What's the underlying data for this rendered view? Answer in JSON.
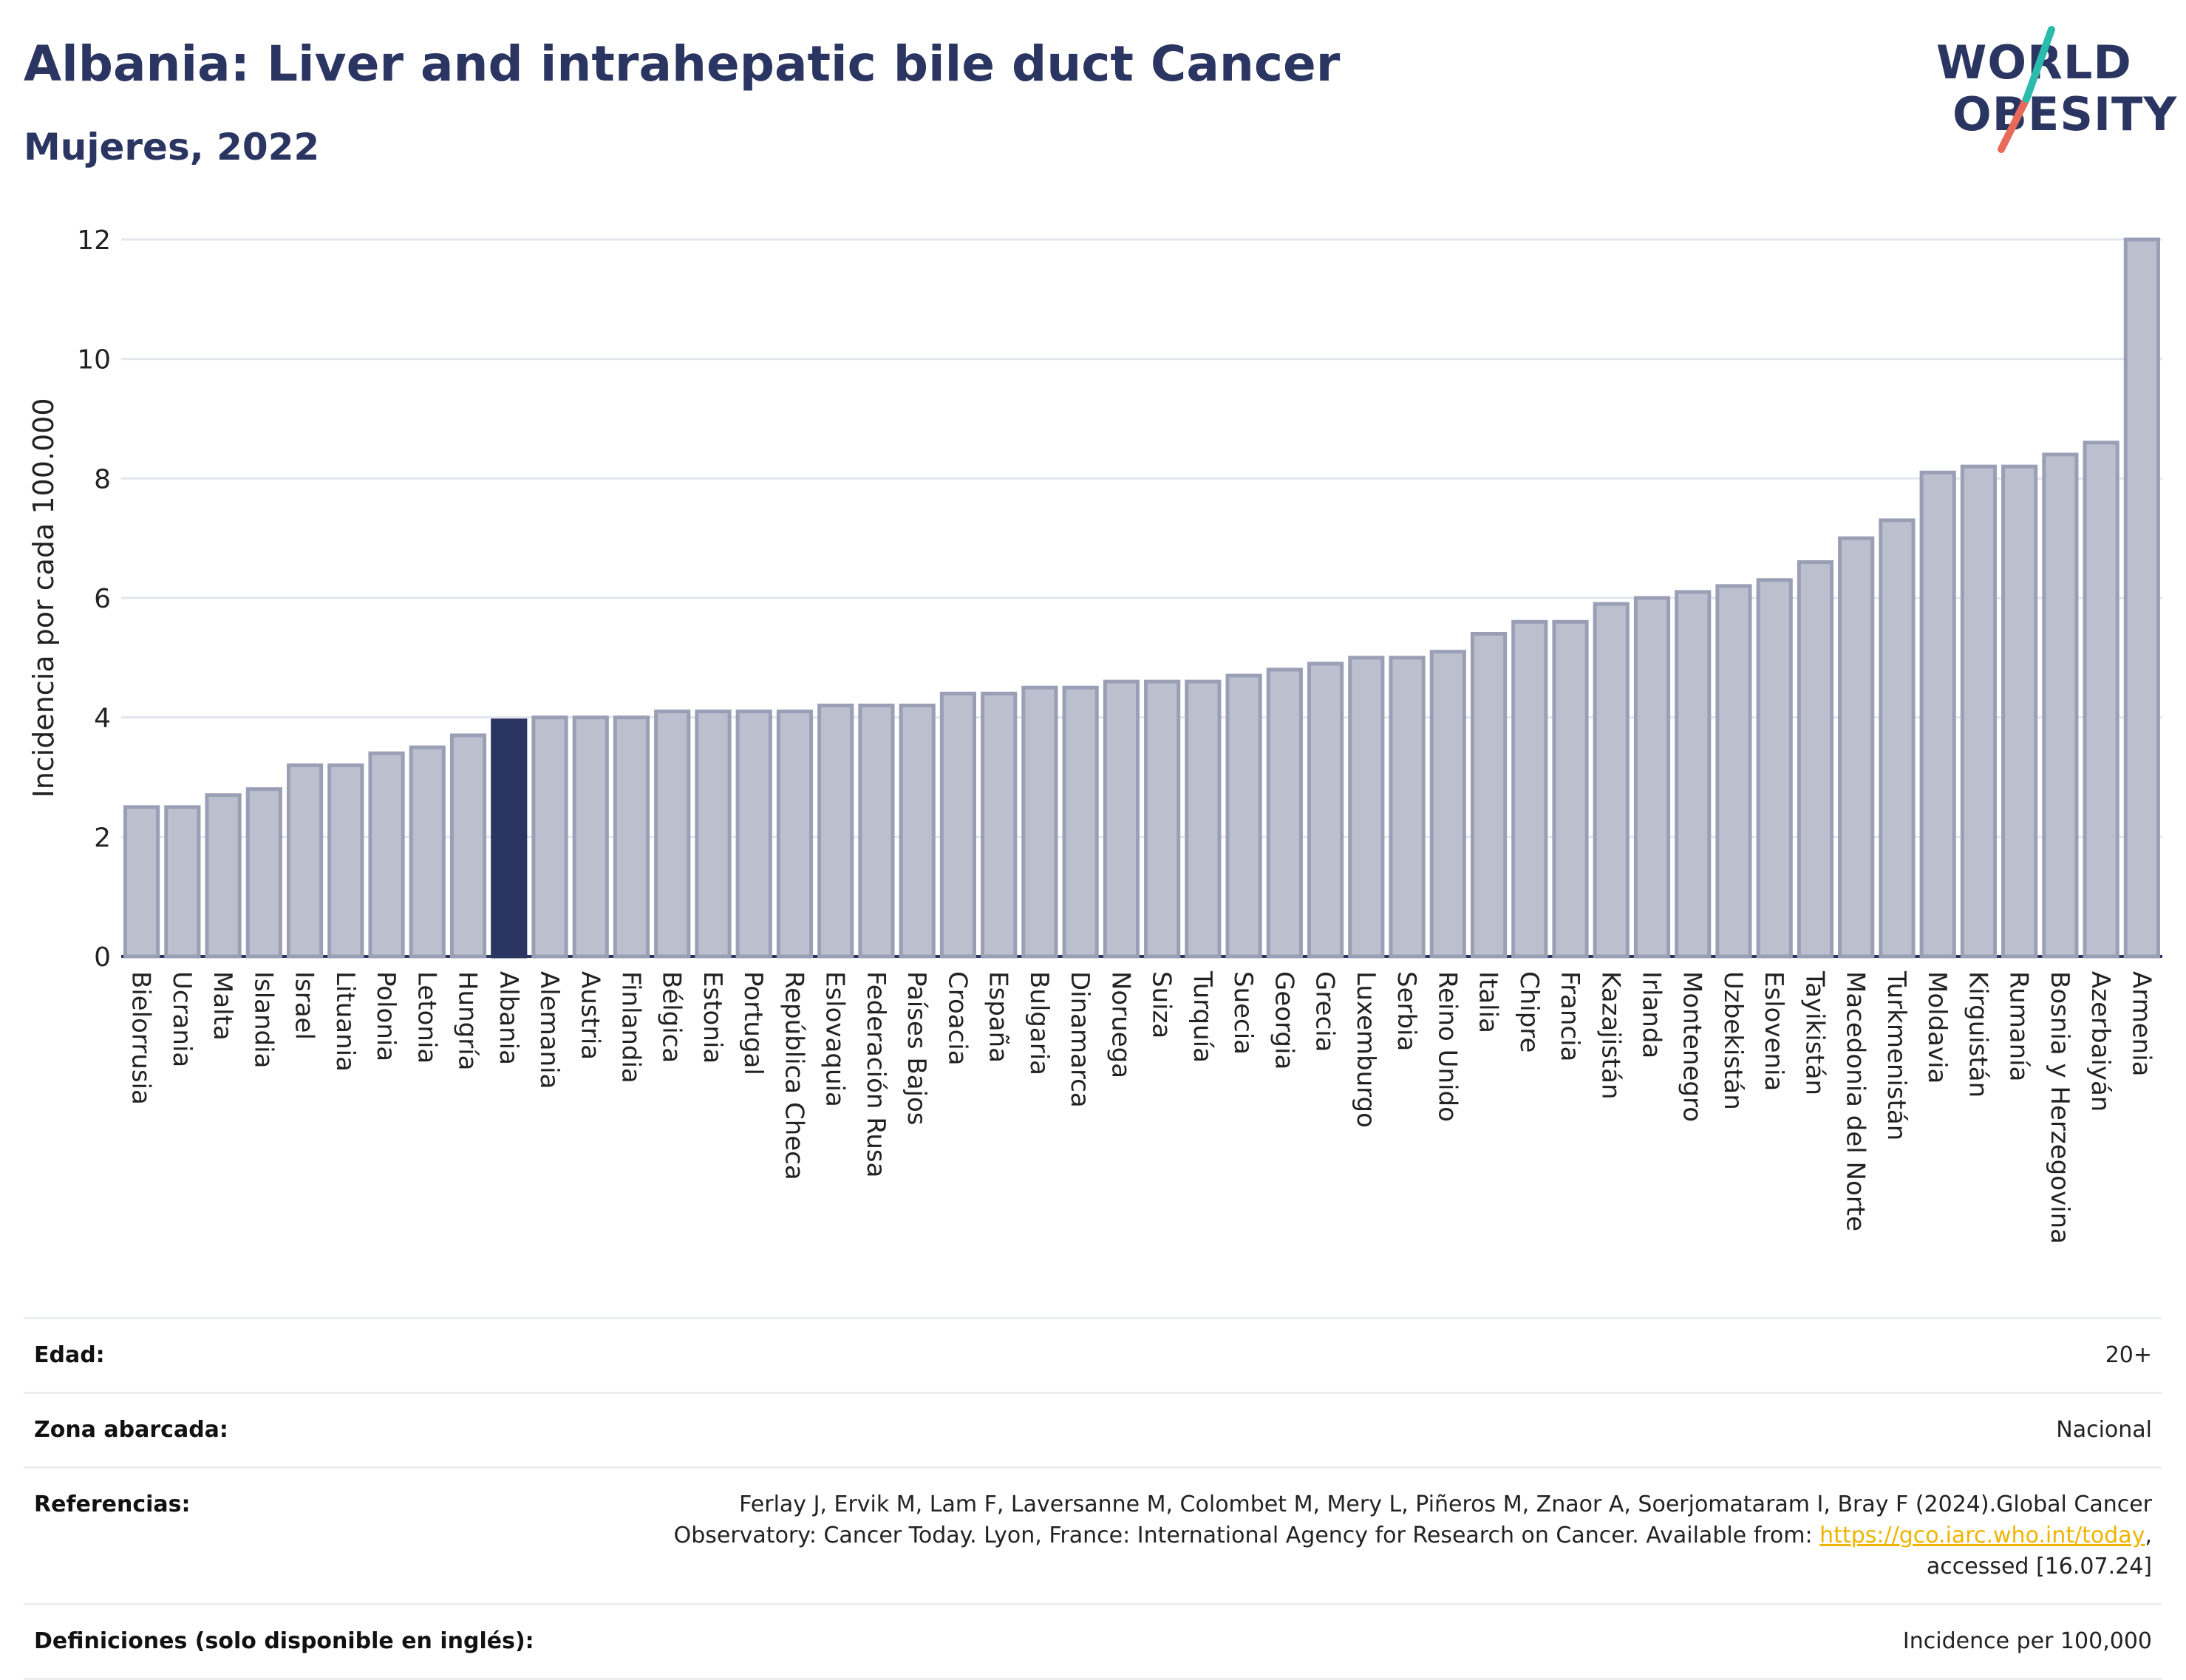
{
  "header": {
    "title": "Albania: Liver and intrahepatic bile duct Cancer",
    "subtitle": "Mujeres, 2022"
  },
  "logo": {
    "line1": "WORLD",
    "line2": "OBESITY"
  },
  "colors": {
    "bar_default": "#bcc0ce",
    "bar_default_stroke": "#9a9fb5",
    "bar_highlight": "#2b3561",
    "grid": "#e4e6ee",
    "title": "#2b3561",
    "logo_slash_teal": "#2bbbad",
    "logo_slash_red": "#e86a5a"
  },
  "chart_data": {
    "type": "bar",
    "title": "Albania: Liver and intrahepatic bile duct Cancer",
    "subtitle": "Mujeres, 2022",
    "xlabel": "",
    "ylabel": "Incidencia por cada 100.000",
    "ylim": [
      0,
      12
    ],
    "yticks": [
      0,
      2,
      4,
      6,
      8,
      10,
      12
    ],
    "grid": true,
    "highlight": "Albania",
    "categories": [
      "Bielorrusia",
      "Ucrania",
      "Malta",
      "Islandia",
      "Israel",
      "Lituania",
      "Polonia",
      "Letonia",
      "Hungría",
      "Albania",
      "Alemania",
      "Austria",
      "Finlandia",
      "Bélgica",
      "Estonia",
      "Portugal",
      "República Checa",
      "Eslovaquia",
      "Federación Rusa",
      "Países Bajos",
      "Croacia",
      "España",
      "Bulgaria",
      "Dinamarca",
      "Noruega",
      "Suiza",
      "Turquía",
      "Suecia",
      "Georgia",
      "Grecia",
      "Luxemburgo",
      "Serbia",
      "Reino Unido",
      "Italia",
      "Chipre",
      "Francia",
      "Kazajistán",
      "Irlanda",
      "Montenegro",
      "Uzbekistán",
      "Eslovenia",
      "Tayikistán",
      "Macedonia del Norte",
      "Turkmenistán",
      "Moldavia",
      "Kirguistán",
      "Rumanía",
      "Bosnia y Herzegovina",
      "Azerbaiyán",
      "Armenia"
    ],
    "values": [
      2.5,
      2.5,
      2.7,
      2.8,
      3.2,
      3.2,
      3.4,
      3.5,
      3.7,
      3.95,
      4.0,
      4.0,
      4.0,
      4.1,
      4.1,
      4.1,
      4.1,
      4.2,
      4.2,
      4.2,
      4.4,
      4.4,
      4.5,
      4.5,
      4.6,
      4.6,
      4.6,
      4.7,
      4.8,
      4.9,
      5.0,
      5.0,
      5.1,
      5.4,
      5.6,
      5.6,
      5.9,
      6.0,
      6.1,
      6.2,
      6.3,
      6.6,
      7.0,
      7.3,
      8.1,
      8.2,
      8.2,
      8.4,
      8.6,
      12.0
    ]
  },
  "info": {
    "rows": [
      {
        "label": "Edad:",
        "value": "20+"
      },
      {
        "label": "Zona abarcada:",
        "value": "Nacional"
      },
      {
        "label": "Referencias:",
        "value_line1": "Ferlay J, Ervik M, Lam F, Laversanne M, Colombet M, Mery L, Piñeros M, Znaor A, Soerjomataram I, Bray F (2024).Global Cancer",
        "value_line2_pre": "Observatory: Cancer Today. Lyon, France: International Agency for Research on Cancer. Available from: ",
        "link": "https://gco.iarc.who.int/today",
        "value_line2_post": ",",
        "value_line3": "accessed [16.07.24]"
      },
      {
        "label": "Definiciones (solo disponible en inglés):",
        "value": "Incidence per 100,000"
      }
    ]
  }
}
